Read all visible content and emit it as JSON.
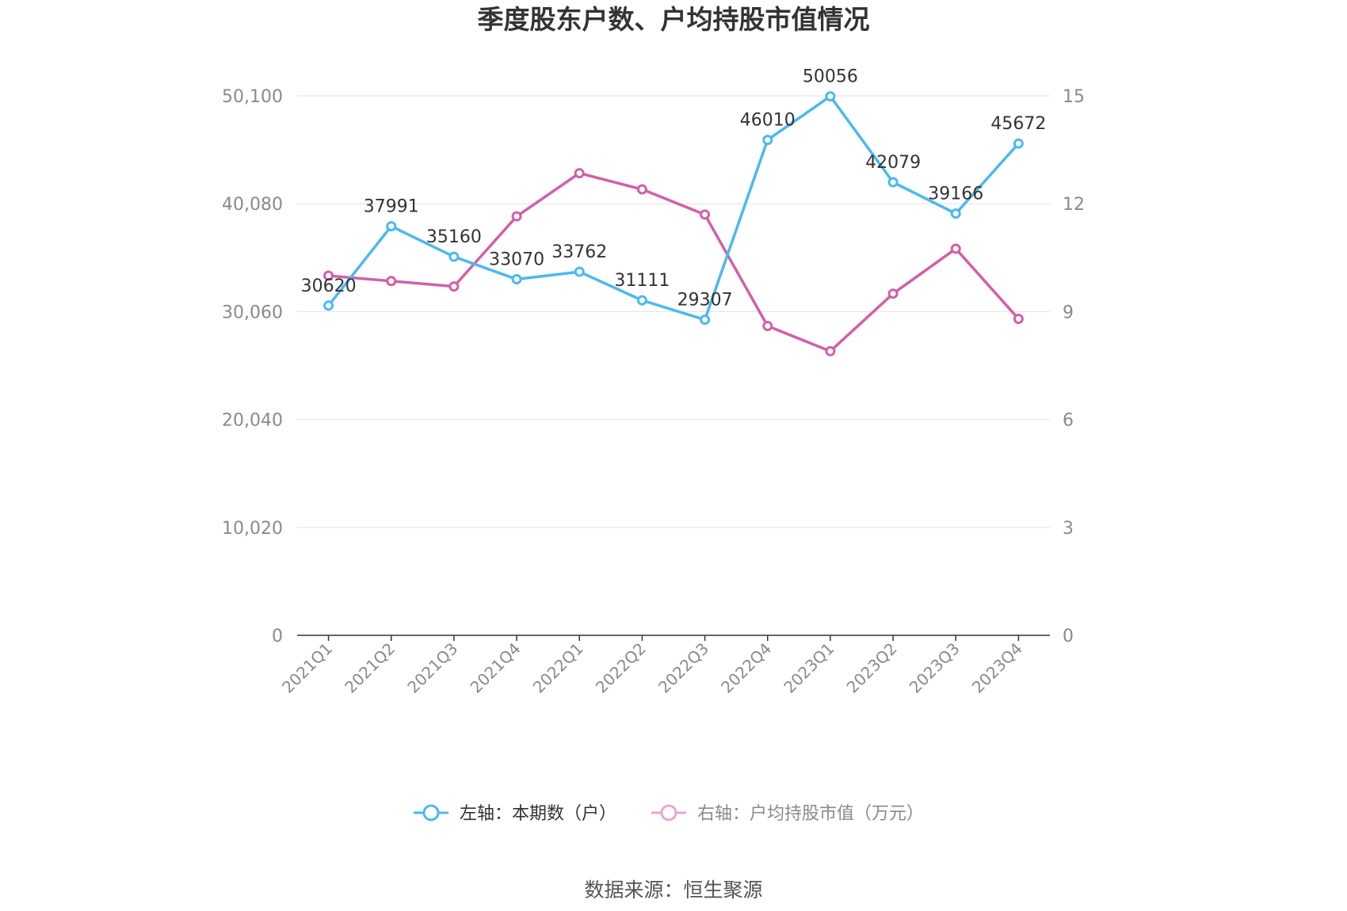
{
  "chart_data": {
    "type": "line",
    "title": "季度股东户数、户均持股市值情况",
    "categories": [
      "2021Q1",
      "2021Q2",
      "2021Q3",
      "2021Q4",
      "2022Q1",
      "2022Q2",
      "2022Q3",
      "2022Q4",
      "2023Q1",
      "2023Q2",
      "2023Q3",
      "2023Q4"
    ],
    "left_axis": {
      "ticks": [
        "0",
        "10,020",
        "20,040",
        "30,060",
        "40,080",
        "50,100"
      ],
      "ylim": [
        0,
        50100
      ]
    },
    "right_axis": {
      "ticks": [
        "0",
        "3",
        "6",
        "9",
        "12",
        "15"
      ],
      "ylim": [
        0,
        15
      ]
    },
    "series": [
      {
        "name": "左轴：本期数（户）",
        "axis": "left",
        "color": "#4db8ef",
        "values": [
          30620,
          37991,
          35160,
          33070,
          33762,
          31111,
          29307,
          46010,
          50056,
          42079,
          39166,
          45672
        ],
        "labels": [
          "30620",
          "37991",
          "35160",
          "33070",
          "33762",
          "31111",
          "29307",
          "46010",
          "50056",
          "42079",
          "39166",
          "45672"
        ]
      },
      {
        "name": "右轴：户均持股市值（万元）",
        "axis": "right",
        "color": "#d35fa8",
        "legend_color": "#e9a7cf",
        "values": [
          10.0,
          9.85,
          9.7,
          11.65,
          12.85,
          12.4,
          11.7,
          8.6,
          7.9,
          9.5,
          10.75,
          8.8
        ]
      }
    ],
    "grid": true,
    "legend": "bottom-center"
  },
  "source": "数据来源：恒生聚源"
}
